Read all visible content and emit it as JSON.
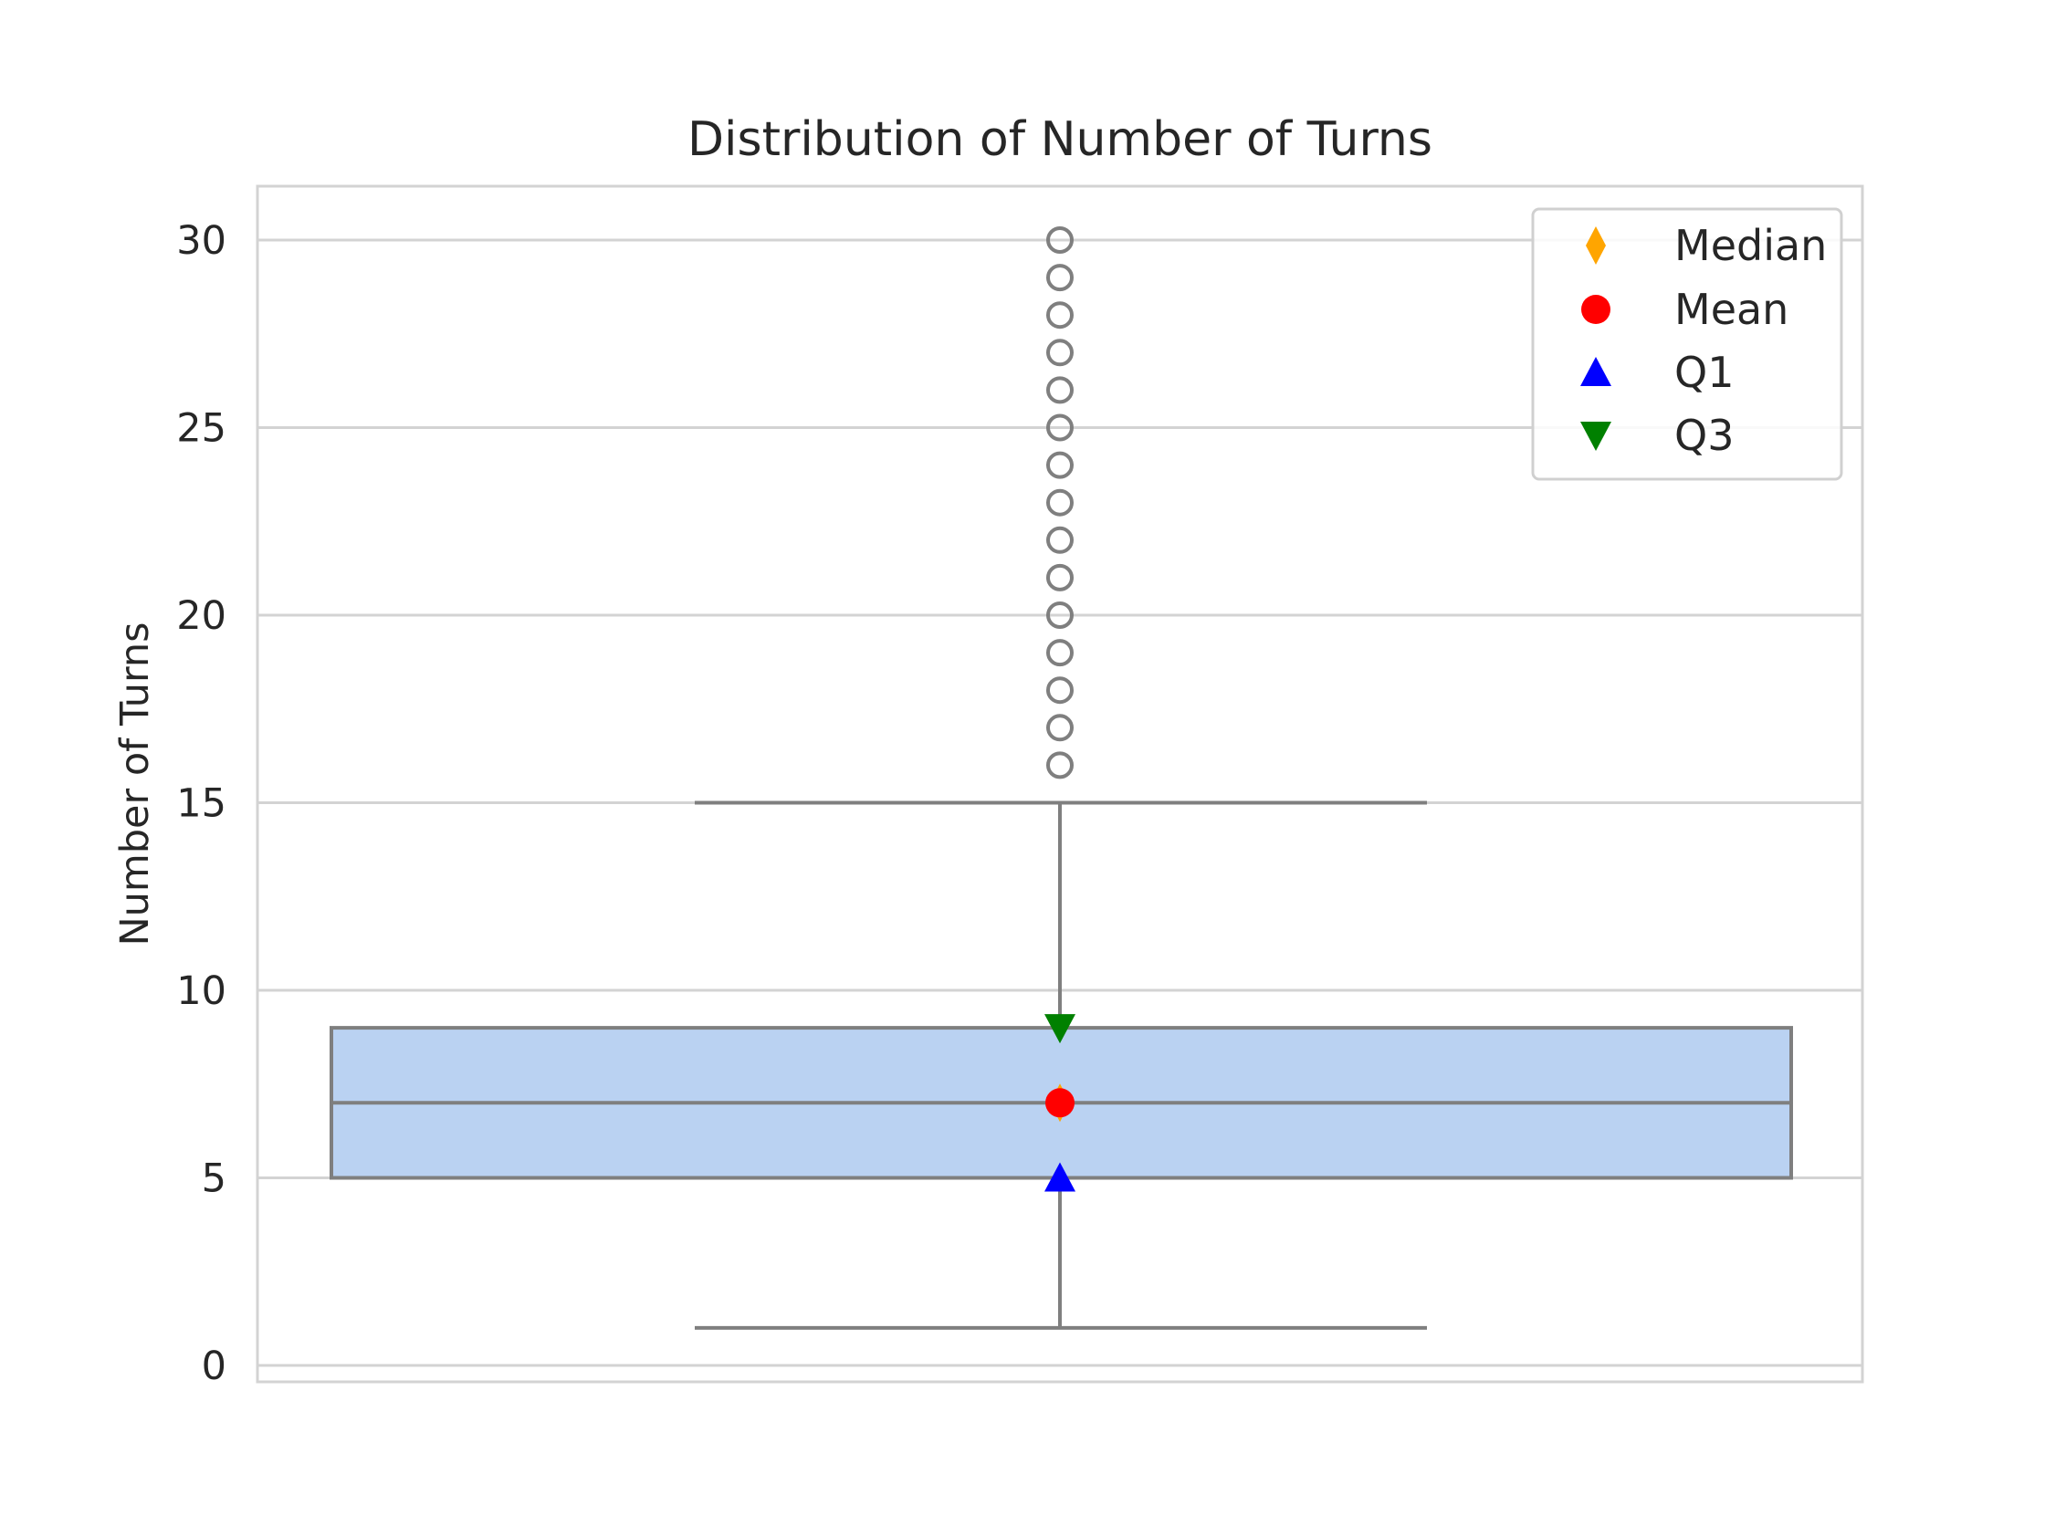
{
  "chart_data": {
    "type": "box",
    "title": "Distribution of Number of Turns",
    "xlabel": "",
    "ylabel": "Number of Turns",
    "ylim": [
      -0.5,
      31.5
    ],
    "yticks": [
      0,
      5,
      10,
      15,
      20,
      25,
      30
    ],
    "grid": true,
    "legend_position": "upper right",
    "box": {
      "whisker_low": 1,
      "q1": 5,
      "median": 7,
      "q3": 9,
      "whisker_high": 15,
      "fill_color": "#bad2f2",
      "line_color": "#7f7f7f"
    },
    "outliers": [
      16,
      17,
      18,
      19,
      20,
      21,
      22,
      23,
      24,
      25,
      26,
      27,
      28,
      29,
      30
    ],
    "markers": [
      {
        "name": "Median",
        "value": 7,
        "shape": "diamond",
        "color": "#ffa500"
      },
      {
        "name": "Mean",
        "value": 7,
        "shape": "circle",
        "color": "#ff0000"
      },
      {
        "name": "Q1",
        "value": 5,
        "shape": "triangle-up",
        "color": "#0000ff"
      },
      {
        "name": "Q3",
        "value": 9,
        "shape": "triangle-down",
        "color": "#008000"
      }
    ]
  }
}
